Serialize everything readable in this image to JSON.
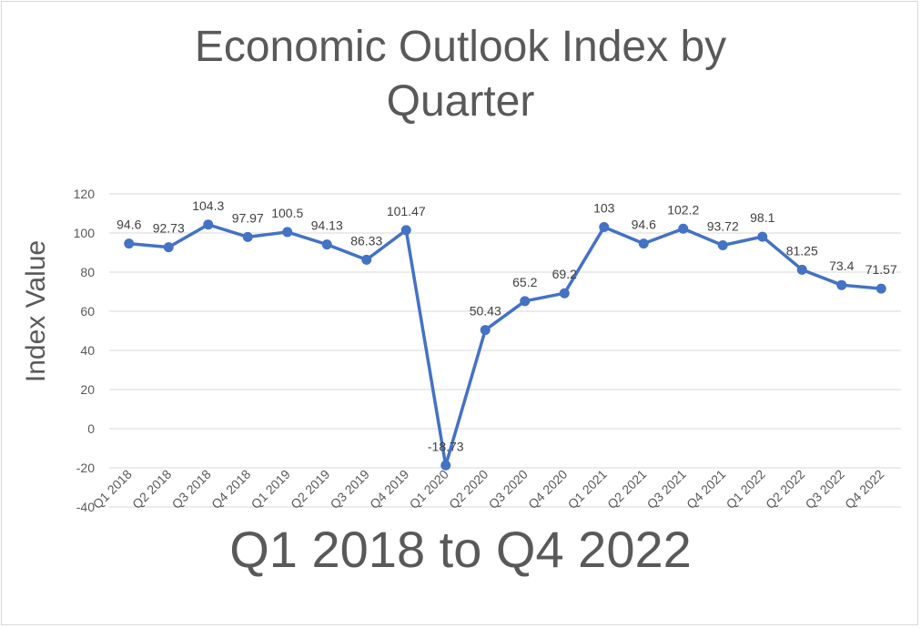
{
  "chart_data": {
    "type": "line",
    "title": "Economic Outlook Index by\nQuarter",
    "xlabel": "Q1 2018 to Q4 2022",
    "ylabel": "Index Value",
    "categories": [
      "Q1 2018",
      "Q2 2018",
      "Q3 2018",
      "Q4 2018",
      "Q1 2019",
      "Q2 2019",
      "Q3 2019",
      "Q4 2019",
      "Q1 2020",
      "Q2 2020",
      "Q3 2020",
      "Q4 2020",
      "Q1 2021",
      "Q2 2021",
      "Q3 2021",
      "Q4 2021",
      "Q1 2022",
      "Q2 2022",
      "Q3 2022",
      "Q4 2022"
    ],
    "values": [
      94.6,
      92.73,
      104.3,
      97.97,
      100.5,
      94.13,
      86.33,
      101.47,
      -18.73,
      50.43,
      65.2,
      69.2,
      103,
      94.6,
      102.2,
      93.72,
      98.1,
      81.25,
      73.4,
      71.57
    ],
    "ylim": [
      -40,
      120
    ],
    "yticks": [
      -40,
      -20,
      0,
      20,
      40,
      60,
      80,
      100,
      120
    ],
    "grid": true,
    "line_color": "#4472c4",
    "grid_color": "#d9d9d9"
  }
}
